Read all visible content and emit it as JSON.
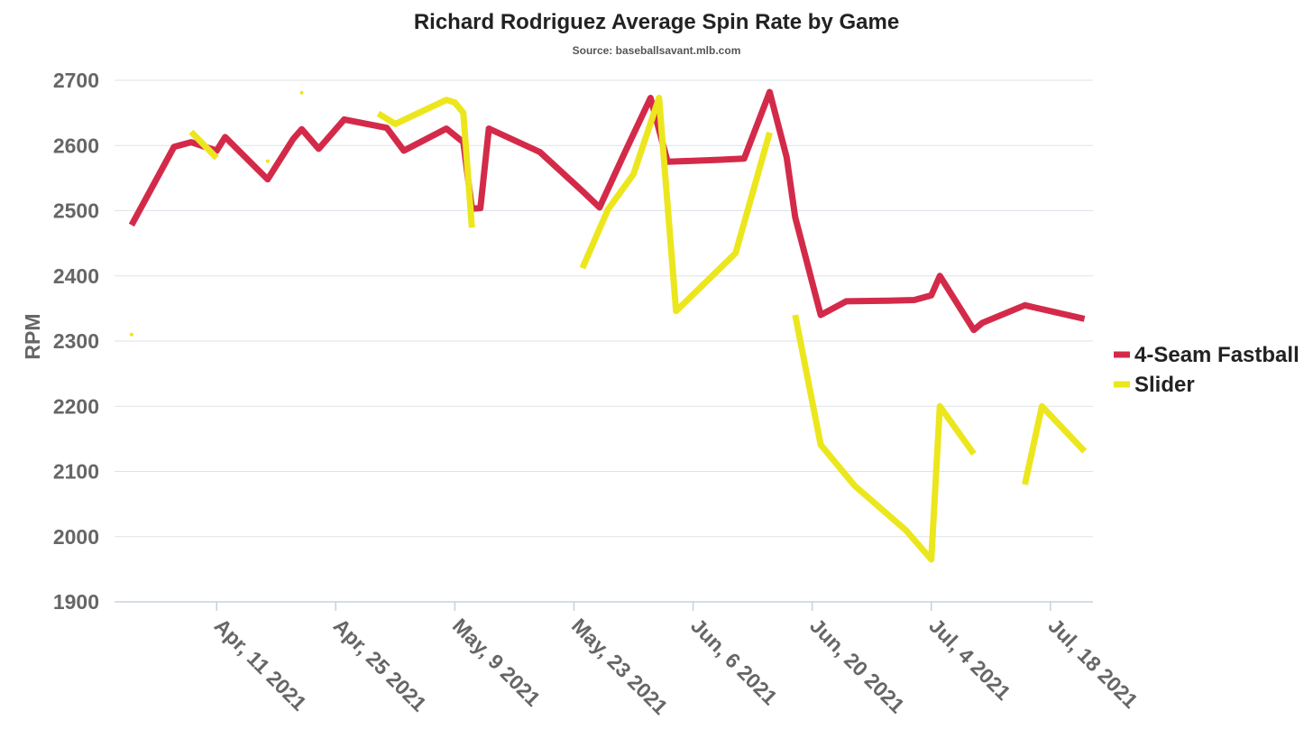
{
  "chart_data": {
    "type": "line",
    "title": "Richard Rodriguez Average Spin Rate by Game",
    "subtitle": "Source: baseballsavant.mlb.com",
    "ylabel": "RPM",
    "ylim": [
      1900,
      2700
    ],
    "yticks": [
      1900,
      2000,
      2100,
      2200,
      2300,
      2400,
      2500,
      2600,
      2700
    ],
    "xlim": [
      "2021-03-30",
      "2021-07-23"
    ],
    "xticks": [
      {
        "date": "2021-04-11",
        "label": "Apr, 11 2021"
      },
      {
        "date": "2021-04-25",
        "label": "Apr, 25 2021"
      },
      {
        "date": "2021-05-09",
        "label": "May, 9 2021"
      },
      {
        "date": "2021-05-23",
        "label": "May, 23 2021"
      },
      {
        "date": "2021-06-06",
        "label": "Jun, 6 2021"
      },
      {
        "date": "2021-06-20",
        "label": "Jun, 20 2021"
      },
      {
        "date": "2021-07-04",
        "label": "Jul, 4 2021"
      },
      {
        "date": "2021-07-18",
        "label": "Jul, 18 2021"
      }
    ],
    "grid": true,
    "legend_position": "right",
    "series": [
      {
        "name": "4-Seam Fastball",
        "color": "#d42a4a",
        "points": [
          [
            "2021-04-01",
            2478
          ],
          [
            "2021-04-06",
            2598
          ],
          [
            "2021-04-08",
            2605
          ],
          [
            "2021-04-11",
            2592
          ],
          [
            "2021-04-12",
            2613
          ],
          [
            "2021-04-17",
            2548
          ],
          [
            "2021-04-20",
            2610
          ],
          [
            "2021-04-21",
            2625
          ],
          [
            "2021-04-23",
            2595
          ],
          [
            "2021-04-26",
            2640
          ],
          [
            "2021-05-01",
            2627
          ],
          [
            "2021-05-03",
            2592
          ],
          [
            "2021-05-08",
            2626
          ],
          [
            "2021-05-10",
            2605
          ],
          [
            "2021-05-11",
            2503
          ],
          [
            "2021-05-12",
            2504
          ],
          [
            "2021-05-13",
            2626
          ],
          [
            "2021-05-19",
            2590
          ],
          [
            "2021-05-24",
            2530
          ],
          [
            "2021-05-26",
            2505
          ],
          [
            "2021-05-29",
            2590
          ],
          [
            "2021-06-01",
            2673
          ],
          [
            "2021-06-03",
            2575
          ],
          [
            "2021-06-09",
            2578
          ],
          [
            "2021-06-12",
            2580
          ],
          [
            "2021-06-15",
            2682
          ],
          [
            "2021-06-17",
            2582
          ],
          [
            "2021-06-18",
            2490
          ],
          [
            "2021-06-21",
            2340
          ],
          [
            "2021-06-24",
            2361
          ],
          [
            "2021-06-29",
            2362
          ],
          [
            "2021-07-02",
            2363
          ],
          [
            "2021-07-04",
            2370
          ],
          [
            "2021-07-05",
            2400
          ],
          [
            "2021-07-09",
            2317
          ],
          [
            "2021-07-10",
            2328
          ],
          [
            "2021-07-15",
            2355
          ],
          [
            "2021-07-22",
            2334
          ]
        ]
      },
      {
        "name": "Slider",
        "color": "#ece61d",
        "segments": [
          [
            [
              "2021-04-08",
              2621
            ],
            [
              "2021-04-11",
              2581
            ]
          ],
          [
            [
              "2021-04-30",
              2649
            ],
            [
              "2021-05-02",
              2633
            ],
            [
              "2021-05-08",
              2670
            ],
            [
              "2021-05-09",
              2666
            ],
            [
              "2021-05-10",
              2650
            ],
            [
              "2021-05-11",
              2474
            ]
          ],
          [
            [
              "2021-05-24",
              2412
            ],
            [
              "2021-05-27",
              2502
            ],
            [
              "2021-05-30",
              2556
            ],
            [
              "2021-06-02",
              2673
            ],
            [
              "2021-06-04",
              2346
            ],
            [
              "2021-06-11",
              2435
            ],
            [
              "2021-06-15",
              2620
            ]
          ],
          [
            [
              "2021-06-18",
              2340
            ],
            [
              "2021-06-21",
              2141
            ],
            [
              "2021-06-25",
              2078
            ],
            [
              "2021-07-01",
              2010
            ],
            [
              "2021-07-04",
              1965
            ],
            [
              "2021-07-05",
              2200
            ],
            [
              "2021-07-09",
              2127
            ]
          ],
          [
            [
              "2021-07-15",
              2080
            ],
            [
              "2021-07-17",
              2200
            ],
            [
              "2021-07-22",
              2131
            ]
          ]
        ],
        "isolated_points": [
          [
            "2021-04-01",
            2310
          ],
          [
            "2021-04-17",
            2576
          ],
          [
            "2021-04-21",
            2681
          ]
        ]
      }
    ]
  }
}
